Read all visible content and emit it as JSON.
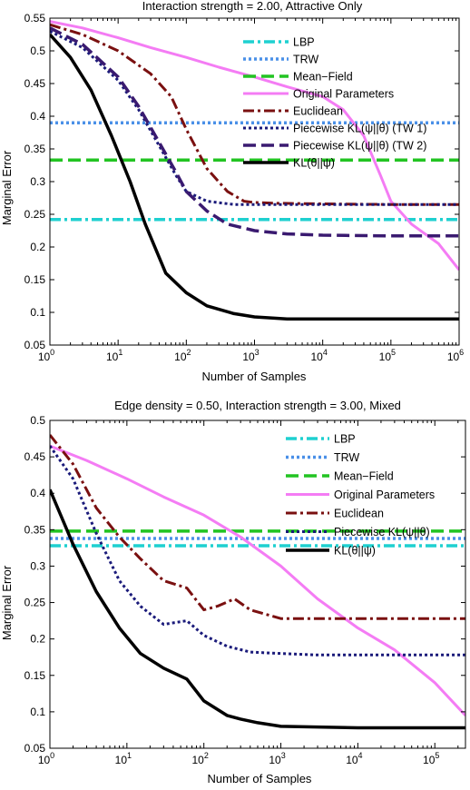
{
  "chart_data": [
    {
      "type": "line",
      "title": "Interaction strength = 2.00, Attractive Only",
      "xlabel": "Number of Samples",
      "ylabel": "Marginal Error",
      "xscale": "log",
      "xlim": [
        1,
        1000000
      ],
      "ylim": [
        0.05,
        0.55
      ],
      "grid": false,
      "legend_position": "top-right",
      "x_ticks": [
        {
          "value": 1,
          "base": "10",
          "exp": "0"
        },
        {
          "value": 10,
          "base": "10",
          "exp": "1"
        },
        {
          "value": 100,
          "base": "10",
          "exp": "2"
        },
        {
          "value": 1000,
          "base": "10",
          "exp": "3"
        },
        {
          "value": 10000,
          "base": "10",
          "exp": "4"
        },
        {
          "value": 100000,
          "base": "10",
          "exp": "5"
        },
        {
          "value": 1000000,
          "base": "10",
          "exp": "6"
        }
      ],
      "y_ticks": [
        "0.05",
        "0.1",
        "0.15",
        "0.2",
        "0.25",
        "0.3",
        "0.35",
        "0.4",
        "0.45",
        "0.5",
        "0.55"
      ],
      "series": [
        {
          "name": "LBP",
          "color": "#1fd0d0",
          "style": "dashdot",
          "width": 3.5,
          "x": [
            1,
            1000000
          ],
          "y": [
            0.242,
            0.242
          ]
        },
        {
          "name": "TRW",
          "color": "#4a90e8",
          "style": "dot",
          "width": 3.5,
          "x": [
            1,
            1000000
          ],
          "y": [
            0.39,
            0.39
          ]
        },
        {
          "name": "Mean−Field",
          "color": "#22c422",
          "style": "dash",
          "width": 3.5,
          "x": [
            1,
            1000000
          ],
          "y": [
            0.333,
            0.333
          ]
        },
        {
          "name": "Original Parameters",
          "color": "#f47cf4",
          "style": "solid",
          "width": 3,
          "x": [
            1,
            3,
            10,
            30,
            100,
            300,
            1000,
            3000,
            10000,
            20000,
            40000,
            70000,
            100000,
            200000,
            500000,
            1000000
          ],
          "y": [
            0.545,
            0.535,
            0.52,
            0.505,
            0.49,
            0.475,
            0.46,
            0.445,
            0.43,
            0.41,
            0.37,
            0.31,
            0.27,
            0.235,
            0.205,
            0.165
          ]
        },
        {
          "name": "Euclidean",
          "color": "#7a1010",
          "style": "dashdot",
          "width": 3,
          "x": [
            1,
            3,
            10,
            30,
            60,
            100,
            200,
            400,
            700,
            1000,
            2000,
            10000,
            100000,
            1000000
          ],
          "y": [
            0.54,
            0.525,
            0.5,
            0.465,
            0.43,
            0.38,
            0.32,
            0.285,
            0.27,
            0.268,
            0.267,
            0.266,
            0.265,
            0.265
          ]
        },
        {
          "name": "Piecewise KL(ψ||θ) (TW 1)",
          "color": "#1a1a7a",
          "style": "dot",
          "width": 3,
          "x": [
            1,
            3,
            10,
            20,
            40,
            70,
            100,
            200,
            500,
            1000,
            10000,
            100000,
            1000000
          ],
          "y": [
            0.53,
            0.505,
            0.455,
            0.41,
            0.355,
            0.31,
            0.285,
            0.27,
            0.265,
            0.265,
            0.265,
            0.265,
            0.265
          ]
        },
        {
          "name": "Piecewise KL(ψ||θ) (TW 2)",
          "color": "#3a1a70",
          "style": "dash",
          "width": 3.5,
          "x": [
            1,
            3,
            10,
            20,
            40,
            70,
            100,
            200,
            400,
            1000,
            3000,
            10000,
            100000,
            1000000
          ],
          "y": [
            0.535,
            0.51,
            0.46,
            0.415,
            0.36,
            0.315,
            0.285,
            0.255,
            0.235,
            0.225,
            0.22,
            0.218,
            0.217,
            0.217
          ]
        },
        {
          "name": "KL(θ||ψ)",
          "color": "#000000",
          "style": "solid",
          "width": 3.5,
          "x": [
            1,
            2,
            4,
            8,
            15,
            25,
            50,
            100,
            200,
            500,
            1000,
            3000,
            10000,
            100000,
            1000000
          ],
          "y": [
            0.525,
            0.49,
            0.44,
            0.37,
            0.3,
            0.235,
            0.16,
            0.13,
            0.11,
            0.098,
            0.093,
            0.09,
            0.09,
            0.09,
            0.09
          ]
        }
      ]
    },
    {
      "type": "line",
      "title": "Edge density = 0.50, Interaction strength = 3.00, Mixed",
      "xlabel": "Number of Samples",
      "ylabel": "Marginal Error",
      "xscale": "log",
      "xlim": [
        1,
        250000
      ],
      "ylim": [
        0.05,
        0.5
      ],
      "grid": false,
      "legend_position": "top-right",
      "x_ticks": [
        {
          "value": 1,
          "base": "10",
          "exp": "0"
        },
        {
          "value": 10,
          "base": "10",
          "exp": "1"
        },
        {
          "value": 100,
          "base": "10",
          "exp": "2"
        },
        {
          "value": 1000,
          "base": "10",
          "exp": "3"
        },
        {
          "value": 10000,
          "base": "10",
          "exp": "4"
        },
        {
          "value": 100000,
          "base": "10",
          "exp": "5"
        }
      ],
      "y_ticks": [
        "0.05",
        "0.1",
        "0.15",
        "0.2",
        "0.25",
        "0.3",
        "0.35",
        "0.4",
        "0.45",
        "0.5"
      ],
      "series": [
        {
          "name": "LBP",
          "color": "#1fd0d0",
          "style": "dashdot",
          "width": 3.5,
          "x": [
            1,
            250000
          ],
          "y": [
            0.328,
            0.328
          ]
        },
        {
          "name": "TRW",
          "color": "#4a90e8",
          "style": "dot",
          "width": 3.5,
          "x": [
            1,
            250000
          ],
          "y": [
            0.338,
            0.338
          ]
        },
        {
          "name": "Mean−Field",
          "color": "#22c422",
          "style": "dash",
          "width": 3.5,
          "x": [
            1,
            250000
          ],
          "y": [
            0.348,
            0.348
          ]
        },
        {
          "name": "Original Parameters",
          "color": "#f47cf4",
          "style": "solid",
          "width": 3,
          "x": [
            1,
            3,
            10,
            30,
            100,
            300,
            1000,
            3000,
            10000,
            30000,
            100000,
            250000
          ],
          "y": [
            0.465,
            0.445,
            0.42,
            0.395,
            0.37,
            0.34,
            0.3,
            0.255,
            0.215,
            0.185,
            0.14,
            0.095
          ]
        },
        {
          "name": "Euclidean",
          "color": "#7a1010",
          "style": "dashdot",
          "width": 3,
          "x": [
            1,
            2,
            4,
            8,
            15,
            30,
            60,
            100,
            150,
            250,
            400,
            1000,
            3000,
            10000,
            100000,
            250000
          ],
          "y": [
            0.48,
            0.44,
            0.38,
            0.34,
            0.31,
            0.28,
            0.27,
            0.24,
            0.245,
            0.255,
            0.24,
            0.228,
            0.228,
            0.228,
            0.228,
            0.228
          ]
        },
        {
          "name": "Piecewise KL(ψ||θ)",
          "color": "#1a1a7a",
          "style": "dot",
          "width": 3,
          "x": [
            1,
            2,
            4,
            8,
            15,
            30,
            60,
            100,
            200,
            400,
            1000,
            3000,
            10000,
            100000,
            250000
          ],
          "y": [
            0.465,
            0.42,
            0.345,
            0.28,
            0.245,
            0.22,
            0.225,
            0.205,
            0.19,
            0.182,
            0.18,
            0.178,
            0.178,
            0.178,
            0.178
          ]
        },
        {
          "name": "KL(θ||ψ)",
          "color": "#000000",
          "style": "solid",
          "width": 3.5,
          "x": [
            1,
            2,
            4,
            8,
            15,
            30,
            60,
            100,
            200,
            300,
            500,
            1000,
            10000,
            100000,
            250000
          ],
          "y": [
            0.405,
            0.33,
            0.265,
            0.215,
            0.18,
            0.16,
            0.145,
            0.115,
            0.095,
            0.09,
            0.085,
            0.08,
            0.078,
            0.078,
            0.078
          ]
        }
      ]
    }
  ]
}
